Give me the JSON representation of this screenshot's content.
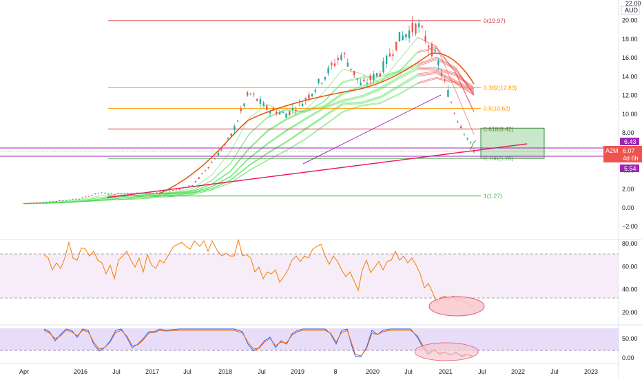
{
  "price_axis": {
    "currency": "AUD",
    "top_partial_label": "22.00",
    "ticks": [
      -2,
      0,
      2,
      4,
      6,
      8,
      10,
      12,
      14,
      16,
      18,
      20
    ],
    "tick_labels": [
      "−2.00",
      "0.00",
      "2.00",
      "4.00",
      "6.00",
      "8.00",
      "10.00",
      "12.00",
      "14.00",
      "16.00",
      "18.00",
      "20.00"
    ]
  },
  "badges": {
    "upper": {
      "value": "6.43",
      "color": "#9c27b0"
    },
    "current": {
      "ticker": "A2M",
      "value": "6.07",
      "countdown": "4d 6h",
      "color": "#ef5350"
    },
    "lower": {
      "value": "5.54",
      "color": "#9c27b0"
    }
  },
  "fib_levels": [
    {
      "label": "0(19.97)",
      "value": 19.97,
      "color": "#d32f2f"
    },
    {
      "label": "0.382(12.83)",
      "value": 12.83,
      "color": "#ff9800"
    },
    {
      "label": "0.5(10.62)",
      "value": 10.62,
      "color": "#ff9800"
    },
    {
      "label": "0.618(8.42)",
      "value": 8.42,
      "color": "#d32f2f"
    },
    {
      "label": "0.786(5.28)",
      "value": 5.28,
      "color": "#4caf50"
    },
    {
      "label": "1(1.27)",
      "value": 1.27,
      "color": "#4caf50"
    }
  ],
  "target_box": {
    "price_low": 5.28,
    "price_high": 8.5,
    "color": "#4caf50"
  },
  "rsi_axis": {
    "ticks": [
      20,
      40,
      60,
      80
    ],
    "tick_labels": [
      "20.00",
      "40.00",
      "60.00",
      "80.00"
    ],
    "band": [
      30,
      70
    ]
  },
  "stoch_axis": {
    "ticks": [
      0,
      50
    ],
    "tick_labels": [
      "0.00",
      "50.00"
    ],
    "band": [
      20,
      80
    ]
  },
  "time_axis": [
    "Apr",
    "2016",
    "Jul",
    "2017",
    "Jul",
    "2018",
    "Jul",
    "2019",
    "8",
    "2020",
    "Jul",
    "2021",
    "Jul",
    "2022",
    "Jul",
    "2023"
  ],
  "chart_data": {
    "type": "line",
    "title": "",
    "xlabel": "",
    "ylabel": "",
    "x": [
      "2015-04",
      "2015-07",
      "2015-10",
      "2016-01",
      "2016-04",
      "2016-07",
      "2016-10",
      "2017-01",
      "2017-04",
      "2017-07",
      "2017-10",
      "2018-01",
      "2018-04",
      "2018-07",
      "2018-10",
      "2019-01",
      "2019-04",
      "2019-07",
      "2019-10",
      "2020-01",
      "2020-04",
      "2020-07",
      "2020-10",
      "2021-01",
      "2021-04"
    ],
    "series": [
      {
        "name": "A2M",
        "color": "#26a69a",
        "values": [
          0.5,
          0.6,
          0.8,
          1.0,
          1.6,
          1.5,
          1.6,
          1.6,
          1.9,
          2.4,
          4.8,
          7.5,
          12.3,
          10.5,
          10.0,
          11.5,
          14.0,
          16.5,
          13.0,
          14.5,
          18.0,
          19.5,
          16.0,
          10.0,
          6.1
        ]
      }
    ],
    "ylim": [
      -2,
      22
    ]
  }
}
